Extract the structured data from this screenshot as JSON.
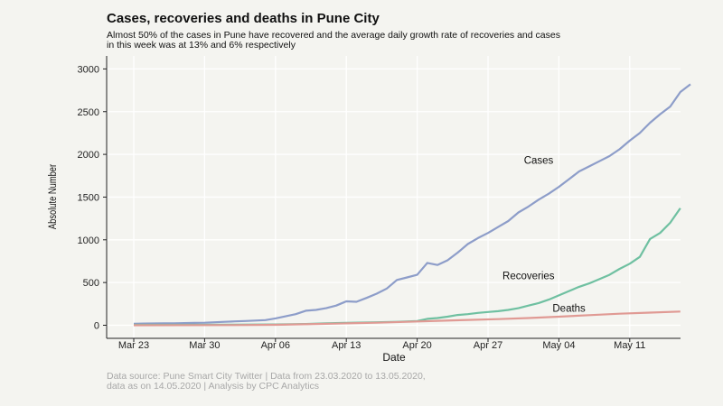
{
  "chart_data": {
    "type": "line",
    "title": "Cases, recoveries and deaths in Pune City",
    "subtitle": [
      "Almost 50% of the cases in Pune have recovered and the average daily growth rate of recoveries and cases",
      "in this week was at 13% and  6% respectively"
    ],
    "xlabel": "Date",
    "ylabel": "Absolute Number",
    "ylim": [
      0,
      3000
    ],
    "yticks": [
      0,
      500,
      1000,
      1500,
      2000,
      2500,
      3000
    ],
    "xticks": [
      {
        "day": 0,
        "label": "Mar 23"
      },
      {
        "day": 7,
        "label": "Mar 30"
      },
      {
        "day": 14,
        "label": "Apr 06"
      },
      {
        "day": 21,
        "label": "Apr 13"
      },
      {
        "day": 28,
        "label": "Apr 20"
      },
      {
        "day": 35,
        "label": "Apr 27"
      },
      {
        "day": 42,
        "label": "May 04"
      },
      {
        "day": 49,
        "label": "May 11"
      }
    ],
    "x_unit": "days since Mar 23, 2020",
    "series": [
      {
        "name": "Cases",
        "color": "#8d9dc9",
        "label_at": {
          "day": 40,
          "value": 1890
        },
        "points": [
          [
            0,
            18
          ],
          [
            1,
            20
          ],
          [
            2,
            21
          ],
          [
            3,
            22
          ],
          [
            4,
            23
          ],
          [
            5,
            25
          ],
          [
            6,
            27
          ],
          [
            7,
            30
          ],
          [
            8,
            35
          ],
          [
            9,
            40
          ],
          [
            10,
            45
          ],
          [
            11,
            50
          ],
          [
            12,
            55
          ],
          [
            13,
            60
          ],
          [
            14,
            80
          ],
          [
            15,
            105
          ],
          [
            16,
            130
          ],
          [
            17,
            170
          ],
          [
            18,
            180
          ],
          [
            19,
            200
          ],
          [
            20,
            230
          ],
          [
            21,
            280
          ],
          [
            22,
            275
          ],
          [
            23,
            320
          ],
          [
            24,
            370
          ],
          [
            25,
            430
          ],
          [
            26,
            530
          ],
          [
            27,
            560
          ],
          [
            28,
            590
          ],
          [
            29,
            730
          ],
          [
            30,
            705
          ],
          [
            31,
            760
          ],
          [
            32,
            850
          ],
          [
            33,
            950
          ],
          [
            34,
            1020
          ],
          [
            35,
            1080
          ],
          [
            36,
            1150
          ],
          [
            37,
            1220
          ],
          [
            38,
            1320
          ],
          [
            39,
            1390
          ],
          [
            40,
            1470
          ],
          [
            41,
            1540
          ],
          [
            42,
            1620
          ],
          [
            43,
            1710
          ],
          [
            44,
            1800
          ],
          [
            45,
            1860
          ],
          [
            46,
            1920
          ],
          [
            47,
            1980
          ],
          [
            48,
            2060
          ],
          [
            49,
            2160
          ],
          [
            50,
            2250
          ],
          [
            51,
            2370
          ],
          [
            52,
            2470
          ],
          [
            53,
            2560
          ],
          [
            54,
            2730
          ],
          [
            55,
            2820
          ]
        ]
      },
      {
        "name": "Recoveries",
        "color": "#6fc0a1",
        "label_at": {
          "day": 39,
          "value": 540
        },
        "points": [
          [
            0,
            5
          ],
          [
            5,
            5
          ],
          [
            10,
            6
          ],
          [
            14,
            10
          ],
          [
            17,
            15
          ],
          [
            19,
            22
          ],
          [
            21,
            28
          ],
          [
            24,
            35
          ],
          [
            26,
            40
          ],
          [
            28,
            50
          ],
          [
            29,
            75
          ],
          [
            30,
            85
          ],
          [
            31,
            100
          ],
          [
            32,
            120
          ],
          [
            33,
            130
          ],
          [
            34,
            145
          ],
          [
            35,
            155
          ],
          [
            36,
            165
          ],
          [
            37,
            180
          ],
          [
            38,
            200
          ],
          [
            39,
            230
          ],
          [
            40,
            260
          ],
          [
            41,
            300
          ],
          [
            42,
            350
          ],
          [
            43,
            400
          ],
          [
            44,
            450
          ],
          [
            45,
            490
          ],
          [
            46,
            540
          ],
          [
            47,
            590
          ],
          [
            48,
            660
          ],
          [
            49,
            720
          ],
          [
            50,
            800
          ],
          [
            51,
            1010
          ],
          [
            52,
            1080
          ],
          [
            53,
            1200
          ],
          [
            54,
            1370
          ]
        ]
      },
      {
        "name": "Deaths",
        "color": "#e09a94",
        "label_at": {
          "day": 43,
          "value": 160
        },
        "points": [
          [
            0,
            0
          ],
          [
            10,
            2
          ],
          [
            14,
            5
          ],
          [
            18,
            15
          ],
          [
            21,
            22
          ],
          [
            24,
            30
          ],
          [
            27,
            40
          ],
          [
            30,
            52
          ],
          [
            33,
            62
          ],
          [
            36,
            72
          ],
          [
            39,
            85
          ],
          [
            42,
            100
          ],
          [
            45,
            118
          ],
          [
            48,
            135
          ],
          [
            51,
            148
          ],
          [
            54,
            160
          ]
        ]
      }
    ],
    "caption": [
      "Data source: Pune Smart City Twitter | Data from 23.03.2020 to 13.05.2020,",
      "data as on 14.05.2020 | Analysis by CPC Analytics"
    ]
  }
}
